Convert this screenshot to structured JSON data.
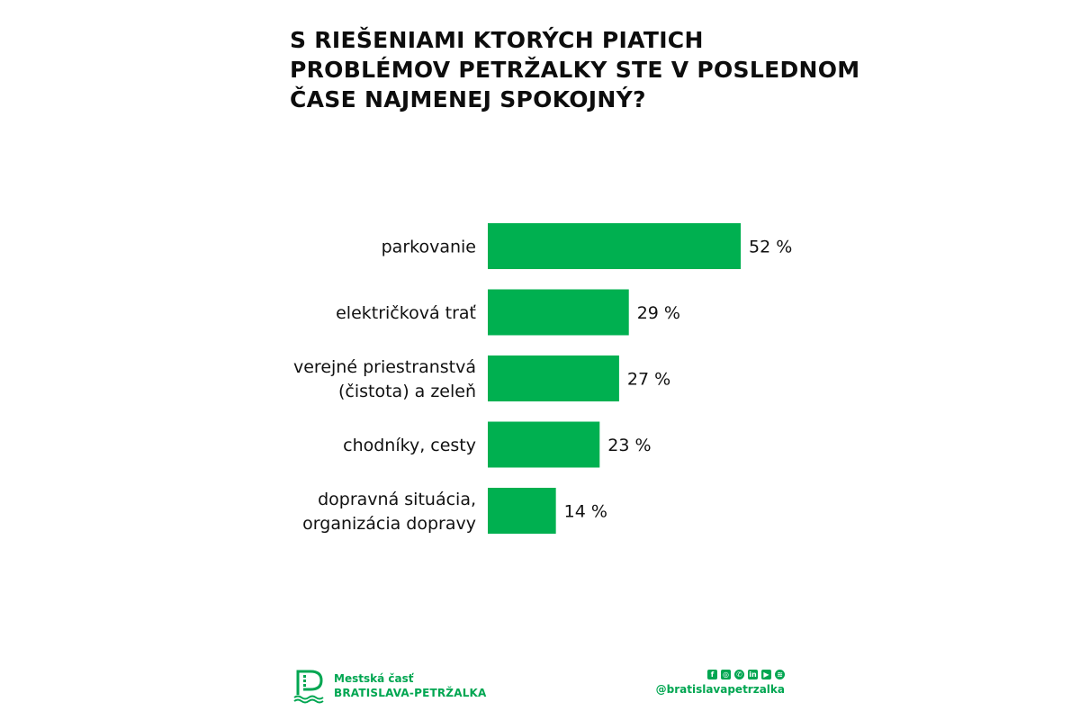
{
  "title_lines": [
    "S RIEŠENIAMI KTORÝCH PIATICH",
    "PROBLÉMOV PETRŽALKY STE V POSLEDNOM",
    "ČASE NAJMENEJ SPOKOJNÝ?"
  ],
  "chart_data": {
    "type": "bar",
    "orientation": "horizontal",
    "title": "S RIEŠENIAMI KTORÝCH PIATICH PROBLÉMOV PETRŽALKY STE V POSLEDNOM ČASE NAJMENEJ SPOKOJNÝ?",
    "categories": [
      [
        "parkovanie"
      ],
      [
        "električková trať"
      ],
      [
        "verejné priestranstvá",
        "(čistota) a zeleň"
      ],
      [
        "chodníky, cesty"
      ],
      [
        "dopravná situácia,",
        "organizácia dopravy"
      ]
    ],
    "values": [
      52,
      29,
      27,
      23,
      14
    ],
    "value_labels": [
      "52 %",
      "29 %",
      "27 %",
      "23 %",
      "14 %"
    ],
    "unit": "%",
    "xlim": [
      0,
      52
    ],
    "grid": false,
    "bar_color": "#00b050"
  },
  "footer": {
    "brand_line1": "Mestská časť",
    "brand_line2": "BRATISLAVA-PETRŽALKA",
    "handle": "@bratislavapetrzalka",
    "social_icons": [
      "facebook-icon",
      "instagram-icon",
      "whatsapp-icon",
      "linkedin-icon",
      "youtube-icon",
      "spotify-icon"
    ]
  },
  "colors": {
    "accent": "#00a651",
    "bar": "#00b050",
    "text": "#111111",
    "background": "#ffffff"
  }
}
